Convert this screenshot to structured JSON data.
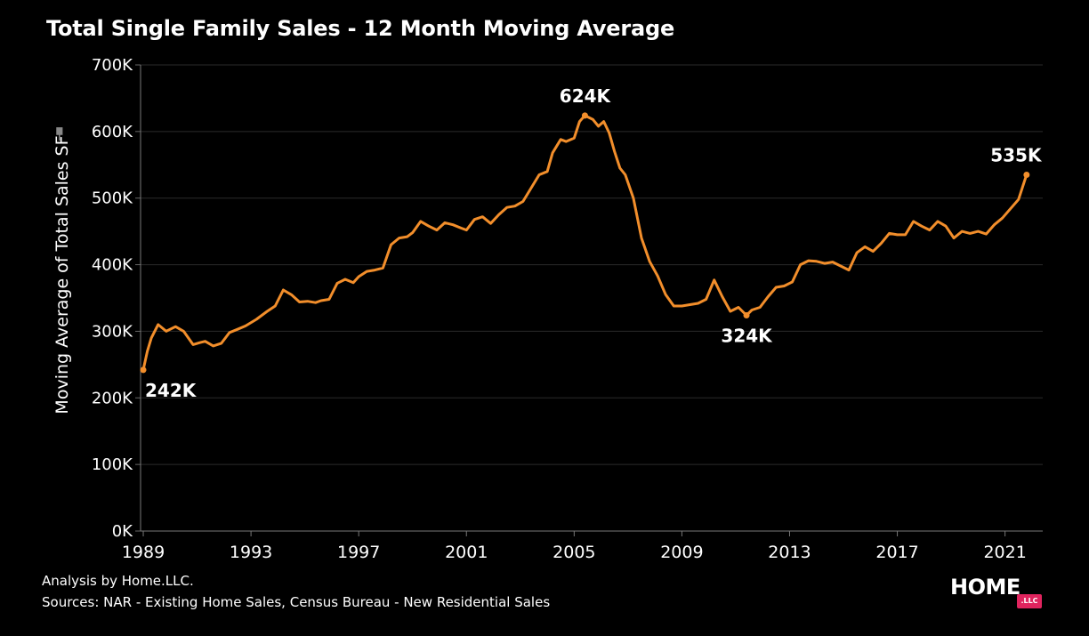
{
  "title": "Total Single Family Sales - 12 Month Moving Average",
  "footer": {
    "analysis": "Analysis by Home.LLC.",
    "sources": "Sources: NAR - Existing Home Sales, Census Bureau - New Residential Sales"
  },
  "logo": {
    "text": "HOME",
    "badge": ".LLC",
    "badge_color": "#e0245e"
  },
  "colors": {
    "line": "#f28e2b",
    "background": "#000000",
    "gridline": "#2a2a2a",
    "text": "#ffffff"
  },
  "chart_data": {
    "type": "line",
    "title": "Total Single Family Sales - 12 Month Moving Average",
    "xlabel": "",
    "ylabel": "Moving Average of Total Sales SF",
    "xlim": [
      1988.9,
      2022.4
    ],
    "ylim": [
      0,
      700000
    ],
    "x_ticks": [
      1989,
      1993,
      1997,
      2001,
      2005,
      2009,
      2013,
      2017,
      2021
    ],
    "y_ticks": [
      {
        "value": 0,
        "label": "0K"
      },
      {
        "value": 100000,
        "label": "100K"
      },
      {
        "value": 200000,
        "label": "200K"
      },
      {
        "value": 300000,
        "label": "300K"
      },
      {
        "value": 400000,
        "label": "400K"
      },
      {
        "value": 500000,
        "label": "500K"
      },
      {
        "value": 600000,
        "label": "600K"
      },
      {
        "value": 700000,
        "label": "700K"
      }
    ],
    "grid": true,
    "legend": "none",
    "series": [
      {
        "x": [
          1989.0,
          1989.15,
          1989.3,
          1989.55,
          1989.85,
          1990.2,
          1990.5,
          1990.85,
          1991.1,
          1991.3,
          1991.6,
          1991.9,
          1992.2,
          1992.5,
          1992.8,
          1993.2,
          1993.6,
          1993.9,
          1994.2,
          1994.5,
          1994.8,
          1995.1,
          1995.4,
          1995.6,
          1995.9,
          1996.2,
          1996.5,
          1996.8,
          1997.0,
          1997.3,
          1997.6,
          1997.9,
          1998.2,
          1998.5,
          1998.8,
          1999.0,
          1999.3,
          1999.6,
          1999.9,
          2000.2,
          2000.5,
          2000.8,
          2001.0,
          2001.3,
          2001.6,
          2001.9,
          2002.2,
          2002.5,
          2002.8,
          2003.1,
          2003.4,
          2003.7,
          2004.0,
          2004.2,
          2004.5,
          2004.7,
          2005.0,
          2005.2,
          2005.4,
          2005.7,
          2005.9,
          2006.1,
          2006.3,
          2006.5,
          2006.7,
          2006.9,
          2007.2,
          2007.5,
          2007.8,
          2008.1,
          2008.4,
          2008.7,
          2009.0,
          2009.3,
          2009.6,
          2009.9,
          2010.2,
          2010.5,
          2010.8,
          2011.1,
          2011.4,
          2011.6,
          2011.9,
          2012.2,
          2012.5,
          2012.8,
          2013.1,
          2013.4,
          2013.7,
          2014.0,
          2014.3,
          2014.6,
          2014.9,
          2015.2,
          2015.5,
          2015.8,
          2016.1,
          2016.4,
          2016.7,
          2017.0,
          2017.3,
          2017.6,
          2017.9,
          2018.2,
          2018.5,
          2018.8,
          2019.1,
          2019.4,
          2019.7,
          2020.0,
          2020.3,
          2020.6,
          2020.9,
          2021.2,
          2021.5,
          2021.8
        ],
        "y": [
          242000,
          270000,
          290000,
          310000,
          300000,
          307000,
          300000,
          280000,
          283000,
          285000,
          278000,
          282000,
          298000,
          303000,
          308000,
          318000,
          330000,
          338000,
          362000,
          355000,
          344000,
          345000,
          343000,
          346000,
          348000,
          372000,
          378000,
          373000,
          382000,
          390000,
          392000,
          395000,
          430000,
          440000,
          442000,
          448000,
          465000,
          458000,
          452000,
          463000,
          460000,
          455000,
          452000,
          468000,
          472000,
          462000,
          475000,
          486000,
          488000,
          495000,
          515000,
          535000,
          540000,
          568000,
          588000,
          585000,
          590000,
          615000,
          624000,
          618000,
          608000,
          615000,
          598000,
          570000,
          545000,
          535000,
          500000,
          440000,
          405000,
          383000,
          355000,
          338000,
          338000,
          340000,
          342000,
          348000,
          377000,
          352000,
          330000,
          336000,
          324000,
          332000,
          336000,
          352000,
          366000,
          368000,
          374000,
          400000,
          406000,
          405000,
          402000,
          404000,
          398000,
          392000,
          418000,
          427000,
          420000,
          432000,
          447000,
          445000,
          445000,
          465000,
          458000,
          452000,
          465000,
          458000,
          440000,
          450000,
          447000,
          450000,
          446000,
          460000,
          470000,
          484000,
          498000,
          535000
        ]
      }
    ],
    "annotations": [
      {
        "x": 1989.0,
        "y": 242000,
        "label": "242K",
        "position": "below"
      },
      {
        "x": 2005.4,
        "y": 624000,
        "label": "624K",
        "position": "above"
      },
      {
        "x": 2011.4,
        "y": 324000,
        "label": "324K",
        "position": "below"
      },
      {
        "x": 2021.8,
        "y": 535000,
        "label": "535K",
        "position": "above"
      }
    ]
  }
}
